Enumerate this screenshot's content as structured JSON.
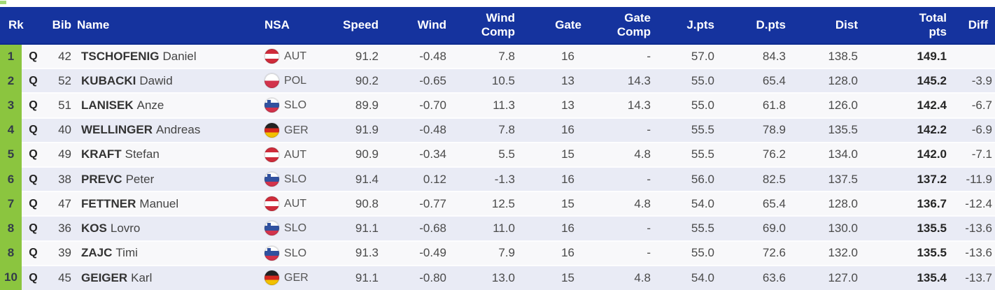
{
  "table": {
    "columns": {
      "rk": "Rk",
      "bib": "Bib",
      "name": "Name",
      "nsa": "NSA",
      "speed": "Speed",
      "wind": "Wind",
      "wind_comp": "Wind\nComp",
      "gate": "Gate",
      "gate_comp": "Gate\nComp",
      "j_pts": "J.pts",
      "d_pts": "D.pts",
      "dist": "Dist",
      "total": "Total\npts",
      "diff": "Diff"
    },
    "rows": [
      {
        "rank": "1",
        "q": "Q",
        "bib": "42",
        "surname": "TSCHOFENIG",
        "given": "Daniel",
        "flag": "aut",
        "nsa": "AUT",
        "speed": "91.2",
        "wind": "-0.48",
        "wind_comp": "7.8",
        "gate": "16",
        "gate_comp": "-",
        "j_pts": "57.0",
        "d_pts": "84.3",
        "dist": "138.5",
        "total": "149.1",
        "diff": ""
      },
      {
        "rank": "2",
        "q": "Q",
        "bib": "52",
        "surname": "KUBACKI",
        "given": "Dawid",
        "flag": "pol",
        "nsa": "POL",
        "speed": "90.2",
        "wind": "-0.65",
        "wind_comp": "10.5",
        "gate": "13",
        "gate_comp": "14.3",
        "j_pts": "55.0",
        "d_pts": "65.4",
        "dist": "128.0",
        "total": "145.2",
        "diff": "-3.9"
      },
      {
        "rank": "3",
        "q": "Q",
        "bib": "51",
        "surname": "LANISEK",
        "given": "Anze",
        "flag": "slo",
        "nsa": "SLO",
        "speed": "89.9",
        "wind": "-0.70",
        "wind_comp": "11.3",
        "gate": "13",
        "gate_comp": "14.3",
        "j_pts": "55.0",
        "d_pts": "61.8",
        "dist": "126.0",
        "total": "142.4",
        "diff": "-6.7"
      },
      {
        "rank": "4",
        "q": "Q",
        "bib": "40",
        "surname": "WELLINGER",
        "given": "Andreas",
        "flag": "ger",
        "nsa": "GER",
        "speed": "91.9",
        "wind": "-0.48",
        "wind_comp": "7.8",
        "gate": "16",
        "gate_comp": "-",
        "j_pts": "55.5",
        "d_pts": "78.9",
        "dist": "135.5",
        "total": "142.2",
        "diff": "-6.9"
      },
      {
        "rank": "5",
        "q": "Q",
        "bib": "49",
        "surname": "KRAFT",
        "given": "Stefan",
        "flag": "aut",
        "nsa": "AUT",
        "speed": "90.9",
        "wind": "-0.34",
        "wind_comp": "5.5",
        "gate": "15",
        "gate_comp": "4.8",
        "j_pts": "55.5",
        "d_pts": "76.2",
        "dist": "134.0",
        "total": "142.0",
        "diff": "-7.1"
      },
      {
        "rank": "6",
        "q": "Q",
        "bib": "38",
        "surname": "PREVC",
        "given": "Peter",
        "flag": "slo",
        "nsa": "SLO",
        "speed": "91.4",
        "wind": "0.12",
        "wind_comp": "-1.3",
        "gate": "16",
        "gate_comp": "-",
        "j_pts": "56.0",
        "d_pts": "82.5",
        "dist": "137.5",
        "total": "137.2",
        "diff": "-11.9"
      },
      {
        "rank": "7",
        "q": "Q",
        "bib": "47",
        "surname": "FETTNER",
        "given": "Manuel",
        "flag": "aut",
        "nsa": "AUT",
        "speed": "90.8",
        "wind": "-0.77",
        "wind_comp": "12.5",
        "gate": "15",
        "gate_comp": "4.8",
        "j_pts": "54.0",
        "d_pts": "65.4",
        "dist": "128.0",
        "total": "136.7",
        "diff": "-12.4"
      },
      {
        "rank": "8",
        "q": "Q",
        "bib": "36",
        "surname": "KOS",
        "given": "Lovro",
        "flag": "slo",
        "nsa": "SLO",
        "speed": "91.1",
        "wind": "-0.68",
        "wind_comp": "11.0",
        "gate": "16",
        "gate_comp": "-",
        "j_pts": "55.5",
        "d_pts": "69.0",
        "dist": "130.0",
        "total": "135.5",
        "diff": "-13.6"
      },
      {
        "rank": "8",
        "q": "Q",
        "bib": "39",
        "surname": "ZAJC",
        "given": "Timi",
        "flag": "slo",
        "nsa": "SLO",
        "speed": "91.3",
        "wind": "-0.49",
        "wind_comp": "7.9",
        "gate": "16",
        "gate_comp": "-",
        "j_pts": "55.0",
        "d_pts": "72.6",
        "dist": "132.0",
        "total": "135.5",
        "diff": "-13.6"
      },
      {
        "rank": "10",
        "q": "Q",
        "bib": "45",
        "surname": "GEIGER",
        "given": "Karl",
        "flag": "ger",
        "nsa": "GER",
        "speed": "91.1",
        "wind": "-0.80",
        "wind_comp": "13.0",
        "gate": "15",
        "gate_comp": "4.8",
        "j_pts": "54.0",
        "d_pts": "63.6",
        "dist": "127.0",
        "total": "135.4",
        "diff": "-13.7"
      }
    ]
  },
  "colors": {
    "header_bg": "#15339e",
    "header_text": "#ffffff",
    "rank_bg": "#8bc53f",
    "row_bg": "#f8f8fa",
    "row_alt_bg": "#e9ebf5"
  }
}
